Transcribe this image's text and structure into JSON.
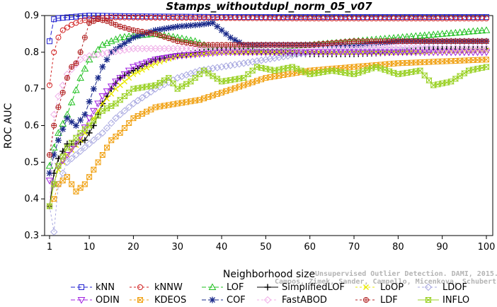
{
  "chart_data": {
    "type": "line",
    "title": "Stamps_withoutdupl_norm_05_v07",
    "xlabel": "Neighborhood size",
    "ylabel": "ROC AUC",
    "xlim": [
      1,
      100
    ],
    "ylim": [
      0.3,
      0.9
    ],
    "xticks": [
      1,
      10,
      20,
      30,
      40,
      50,
      60,
      70,
      80,
      90,
      100
    ],
    "yticks": [
      0.3,
      0.4,
      0.5,
      0.6,
      0.7,
      0.8,
      0.9
    ],
    "legend_placement": "bottom",
    "citation": "Campos, Zimek, Sander, Campello, Micenkova, Schubert, Assent, Houle",
    "citation_line1": "Unsupervised Outlier Detection. DAMI, 2015.",
    "series": [
      {
        "name": "kNN",
        "color": "#1f1fd0",
        "marker": "square",
        "dash": "6,3",
        "points": [
          [
            1,
            0.83
          ],
          [
            2,
            0.89
          ],
          [
            3,
            0.893
          ],
          [
            5,
            0.895
          ],
          [
            10,
            0.9
          ],
          [
            20,
            0.898
          ],
          [
            40,
            0.896
          ],
          [
            60,
            0.896
          ],
          [
            80,
            0.896
          ],
          [
            100,
            0.896
          ]
        ]
      },
      {
        "name": "kNNW",
        "color": "#d01f1f",
        "marker": "circle",
        "dash": "3,3",
        "points": [
          [
            1,
            0.71
          ],
          [
            2,
            0.8
          ],
          [
            3,
            0.84
          ],
          [
            4,
            0.86
          ],
          [
            6,
            0.875
          ],
          [
            8,
            0.885
          ],
          [
            10,
            0.89
          ],
          [
            15,
            0.895
          ],
          [
            30,
            0.894
          ],
          [
            60,
            0.892
          ],
          [
            100,
            0.892
          ]
        ]
      },
      {
        "name": "LOF",
        "color": "#20c020",
        "marker": "triangle",
        "dash": "6,3",
        "points": [
          [
            1,
            0.49
          ],
          [
            2,
            0.54
          ],
          [
            3,
            0.58
          ],
          [
            5,
            0.63
          ],
          [
            8,
            0.73
          ],
          [
            10,
            0.78
          ],
          [
            13,
            0.82
          ],
          [
            17,
            0.84
          ],
          [
            20,
            0.845
          ],
          [
            25,
            0.85
          ],
          [
            30,
            0.84
          ],
          [
            34,
            0.83
          ],
          [
            38,
            0.81
          ],
          [
            45,
            0.81
          ],
          [
            60,
            0.82
          ],
          [
            70,
            0.83
          ],
          [
            80,
            0.84
          ],
          [
            90,
            0.85
          ],
          [
            100,
            0.86
          ]
        ]
      },
      {
        "name": "SimplifiedLOF",
        "color": "#000000",
        "marker": "plus",
        "dash": "",
        "points": [
          [
            1,
            0.38
          ],
          [
            2,
            0.47
          ],
          [
            3,
            0.51
          ],
          [
            5,
            0.55
          ],
          [
            7,
            0.55
          ],
          [
            9,
            0.56
          ],
          [
            11,
            0.6
          ],
          [
            13,
            0.66
          ],
          [
            15,
            0.7
          ],
          [
            17,
            0.73
          ],
          [
            20,
            0.75
          ],
          [
            25,
            0.78
          ],
          [
            30,
            0.79
          ],
          [
            35,
            0.8
          ],
          [
            40,
            0.805
          ],
          [
            50,
            0.8
          ],
          [
            60,
            0.795
          ],
          [
            70,
            0.795
          ],
          [
            80,
            0.8
          ],
          [
            90,
            0.81
          ],
          [
            100,
            0.81
          ]
        ]
      },
      {
        "name": "LoOP",
        "color": "#e8e800",
        "marker": "x",
        "dash": "3,3",
        "points": [
          [
            1,
            0.38
          ],
          [
            2,
            0.44
          ],
          [
            3,
            0.48
          ],
          [
            5,
            0.52
          ],
          [
            8,
            0.56
          ],
          [
            10,
            0.6
          ],
          [
            13,
            0.66
          ],
          [
            16,
            0.7
          ],
          [
            20,
            0.74
          ],
          [
            25,
            0.77
          ],
          [
            30,
            0.79
          ],
          [
            40,
            0.8
          ],
          [
            60,
            0.8
          ],
          [
            80,
            0.8
          ],
          [
            100,
            0.805
          ]
        ]
      },
      {
        "name": "LDOF",
        "color": "#a8a8e0",
        "marker": "diamond",
        "dash": "3,3",
        "points": [
          [
            1,
            0.38
          ],
          [
            2,
            0.31
          ],
          [
            3,
            0.44
          ],
          [
            5,
            0.5
          ],
          [
            8,
            0.53
          ],
          [
            10,
            0.55
          ],
          [
            13,
            0.58
          ],
          [
            16,
            0.62
          ],
          [
            20,
            0.66
          ],
          [
            25,
            0.7
          ],
          [
            30,
            0.73
          ],
          [
            35,
            0.75
          ],
          [
            40,
            0.76
          ],
          [
            50,
            0.78
          ],
          [
            60,
            0.8
          ],
          [
            70,
            0.805
          ],
          [
            80,
            0.805
          ],
          [
            90,
            0.81
          ],
          [
            100,
            0.81
          ]
        ]
      },
      {
        "name": "ODIN",
        "color": "#a020e0",
        "marker": "triangle-down",
        "dash": "6,3",
        "points": [
          [
            1,
            0.45
          ],
          [
            2,
            0.44
          ],
          [
            3,
            0.49
          ],
          [
            5,
            0.52
          ],
          [
            8,
            0.57
          ],
          [
            10,
            0.62
          ],
          [
            13,
            0.68
          ],
          [
            16,
            0.72
          ],
          [
            20,
            0.76
          ],
          [
            25,
            0.78
          ],
          [
            30,
            0.79
          ],
          [
            40,
            0.8
          ],
          [
            60,
            0.8
          ],
          [
            80,
            0.8
          ],
          [
            100,
            0.8
          ]
        ]
      },
      {
        "name": "KDEOS",
        "color": "#f0a010",
        "marker": "square-x",
        "dash": "3,3",
        "points": [
          [
            1,
            0.38
          ],
          [
            2,
            0.4
          ],
          [
            3,
            0.44
          ],
          [
            5,
            0.46
          ],
          [
            7,
            0.42
          ],
          [
            9,
            0.44
          ],
          [
            11,
            0.48
          ],
          [
            13,
            0.52
          ],
          [
            15,
            0.56
          ],
          [
            17,
            0.58
          ],
          [
            20,
            0.62
          ],
          [
            25,
            0.65
          ],
          [
            30,
            0.66
          ],
          [
            35,
            0.67
          ],
          [
            40,
            0.69
          ],
          [
            45,
            0.71
          ],
          [
            50,
            0.73
          ],
          [
            55,
            0.74
          ],
          [
            60,
            0.75
          ],
          [
            70,
            0.76
          ],
          [
            80,
            0.77
          ],
          [
            90,
            0.775
          ],
          [
            100,
            0.78
          ]
        ]
      },
      {
        "name": "COF",
        "color": "#1a2a8a",
        "marker": "star",
        "dash": "6,3",
        "points": [
          [
            1,
            0.47
          ],
          [
            2,
            0.52
          ],
          [
            3,
            0.56
          ],
          [
            5,
            0.62
          ],
          [
            7,
            0.6
          ],
          [
            9,
            0.63
          ],
          [
            11,
            0.7
          ],
          [
            13,
            0.76
          ],
          [
            15,
            0.8
          ],
          [
            20,
            0.84
          ],
          [
            25,
            0.86
          ],
          [
            30,
            0.87
          ],
          [
            35,
            0.875
          ],
          [
            38,
            0.88
          ],
          [
            42,
            0.84
          ],
          [
            45,
            0.82
          ],
          [
            50,
            0.82
          ],
          [
            60,
            0.82
          ],
          [
            70,
            0.82
          ],
          [
            80,
            0.83
          ],
          [
            90,
            0.83
          ],
          [
            100,
            0.83
          ]
        ]
      },
      {
        "name": "FastABOD",
        "color": "#f0b0e8",
        "marker": "diamond",
        "dash": "3,3",
        "points": [
          [
            1,
            0.38
          ],
          [
            2,
            0.63
          ],
          [
            3,
            0.68
          ],
          [
            5,
            0.74
          ],
          [
            8,
            0.78
          ],
          [
            10,
            0.79
          ],
          [
            15,
            0.8
          ],
          [
            20,
            0.81
          ],
          [
            30,
            0.81
          ],
          [
            40,
            0.81
          ],
          [
            50,
            0.815
          ],
          [
            60,
            0.815
          ],
          [
            70,
            0.815
          ],
          [
            80,
            0.815
          ],
          [
            90,
            0.81
          ],
          [
            100,
            0.81
          ]
        ]
      },
      {
        "name": "LDF",
        "color": "#b02020",
        "marker": "circle-plus",
        "dash": "3,3",
        "points": [
          [
            1,
            0.52
          ],
          [
            2,
            0.6
          ],
          [
            3,
            0.65
          ],
          [
            4,
            0.69
          ],
          [
            5,
            0.73
          ],
          [
            6,
            0.76
          ],
          [
            7,
            0.77
          ],
          [
            8,
            0.8
          ],
          [
            9,
            0.84
          ],
          [
            10,
            0.88
          ],
          [
            12,
            0.89
          ],
          [
            14,
            0.885
          ],
          [
            17,
            0.87
          ],
          [
            20,
            0.86
          ],
          [
            25,
            0.85
          ],
          [
            30,
            0.83
          ],
          [
            35,
            0.82
          ],
          [
            40,
            0.82
          ],
          [
            50,
            0.82
          ],
          [
            60,
            0.82
          ],
          [
            70,
            0.83
          ],
          [
            80,
            0.83
          ],
          [
            90,
            0.83
          ],
          [
            100,
            0.83
          ]
        ]
      },
      {
        "name": "INFLO",
        "color": "#98d020",
        "marker": "hourglass",
        "dash": "",
        "points": [
          [
            1,
            0.38
          ],
          [
            2,
            0.44
          ],
          [
            3,
            0.49
          ],
          [
            5,
            0.54
          ],
          [
            8,
            0.58
          ],
          [
            10,
            0.6
          ],
          [
            13,
            0.64
          ],
          [
            16,
            0.66
          ],
          [
            20,
            0.7
          ],
          [
            25,
            0.71
          ],
          [
            28,
            0.73
          ],
          [
            30,
            0.7
          ],
          [
            33,
            0.72
          ],
          [
            36,
            0.75
          ],
          [
            40,
            0.72
          ],
          [
            45,
            0.73
          ],
          [
            48,
            0.76
          ],
          [
            52,
            0.75
          ],
          [
            56,
            0.76
          ],
          [
            60,
            0.74
          ],
          [
            65,
            0.75
          ],
          [
            70,
            0.74
          ],
          [
            75,
            0.76
          ],
          [
            80,
            0.74
          ],
          [
            85,
            0.75
          ],
          [
            88,
            0.71
          ],
          [
            92,
            0.72
          ],
          [
            96,
            0.75
          ],
          [
            100,
            0.76
          ]
        ]
      }
    ]
  }
}
